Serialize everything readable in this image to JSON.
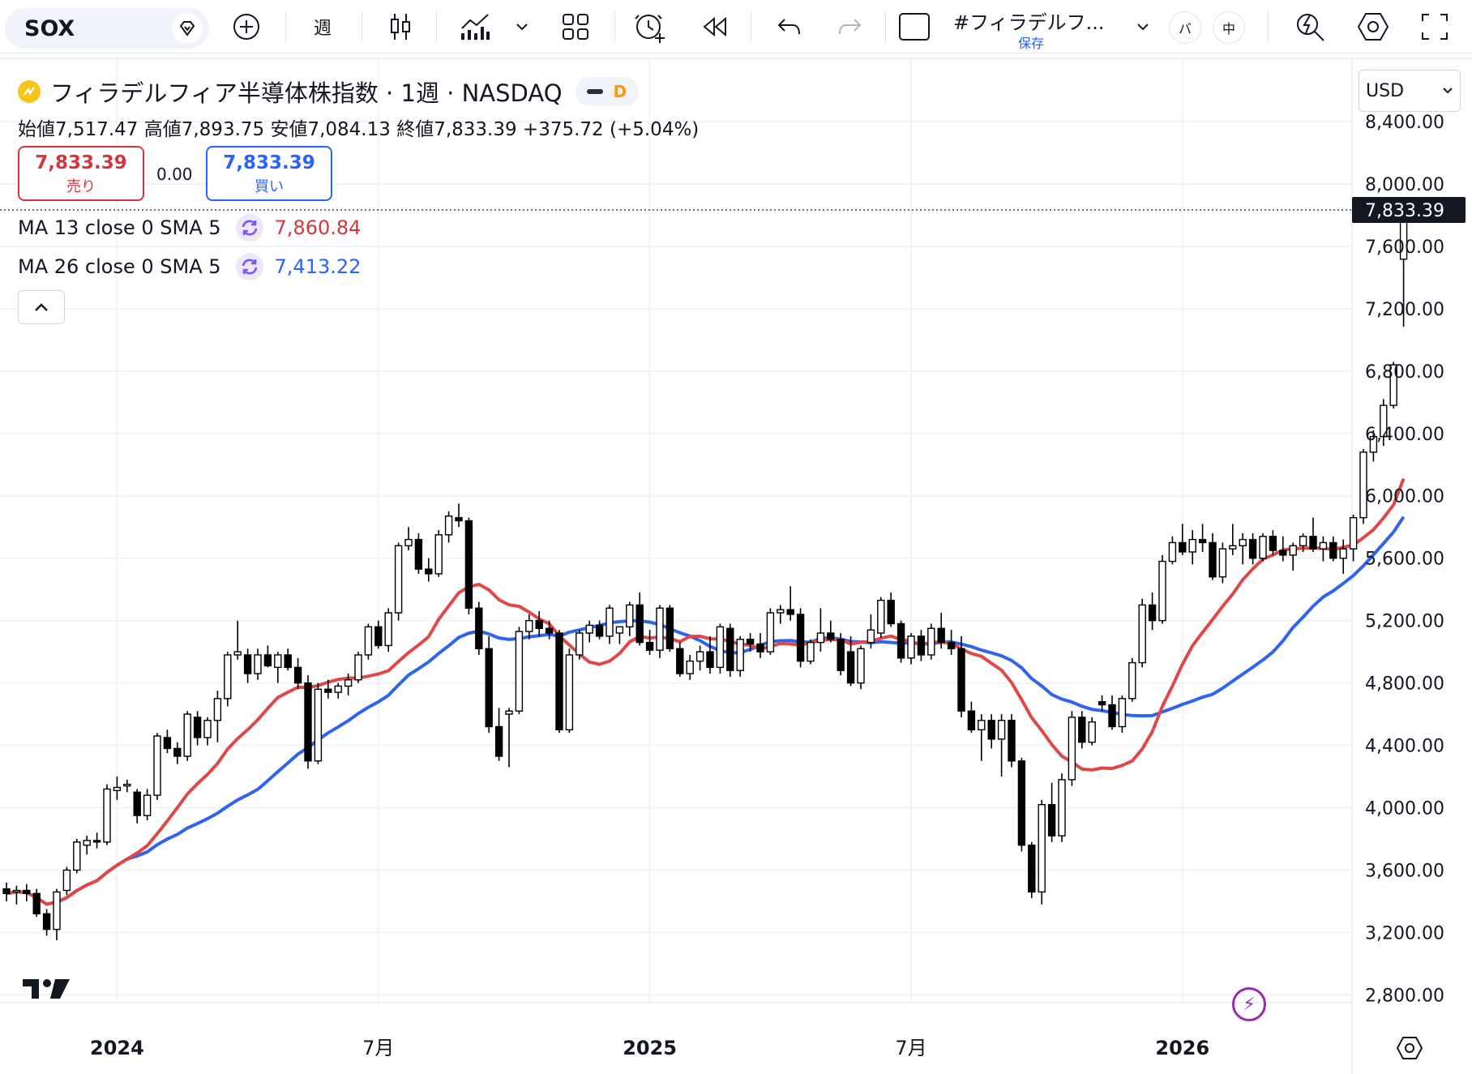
{
  "toolbar": {
    "symbol": "SOX",
    "interval": "週",
    "layout_name": "#フィラデルフ...",
    "layout_saved": "保存",
    "btn_ba": "バ",
    "btn_chu": "中"
  },
  "legend": {
    "title": "フィラデルフィア半導体株指数 · 1週 · NASDAQ",
    "badge": "D",
    "ohlc": "始値7,517.47 高値7,893.75 安値7,084.13 終値7,833.39 +375.72 (+5.04%)",
    "sell_price": "7,833.39",
    "sell_label": "売り",
    "spread": "0.00",
    "buy_price": "7,833.39",
    "buy_label": "買い",
    "ma1_label": "MA 13 close 0 SMA 5",
    "ma1_value": "7,860.84",
    "ma2_label": "MA 26 close 0 SMA 5",
    "ma2_value": "7,413.22"
  },
  "currency": "USD",
  "colors": {
    "up": "#ffffff",
    "down": "#000000",
    "ma13": "#e04848",
    "ma26": "#2f63f0",
    "grid": "#f0f3fa",
    "sell": "#d1373f",
    "buy": "#2962ff"
  },
  "chart_data": {
    "type": "candlestick",
    "y_ticks": [
      "8,400.00",
      "8,000.00",
      "7,600.00",
      "7,200.00",
      "6,800.00",
      "6,400.00",
      "6,000.00",
      "5,600.00",
      "5,200.00",
      "4,800.00",
      "4,400.00",
      "4,000.00",
      "3,600.00",
      "3,200.00",
      "2,800.00"
    ],
    "y_tick_values": [
      8400,
      8000,
      7600,
      7200,
      6800,
      6400,
      6000,
      5600,
      5200,
      4800,
      4400,
      4000,
      3600,
      3200,
      2800
    ],
    "ylim": [
      2750,
      8800
    ],
    "x_labels": [
      "2024",
      "7月",
      "2025",
      "7月",
      "2026"
    ],
    "x_label_bold": [
      true,
      false,
      true,
      false,
      true
    ],
    "x_label_week": [
      11,
      37,
      64,
      90,
      117
    ],
    "last_price": "7,833.39",
    "last_price_value": 7833.39,
    "num_weeks": 140,
    "candles": [
      {
        "w": 0,
        "o": 3480,
        "h": 3520,
        "l": 3400,
        "c": 3450
      },
      {
        "w": 1,
        "o": 3460,
        "h": 3500,
        "l": 3380,
        "c": 3470
      },
      {
        "w": 2,
        "o": 3470,
        "h": 3510,
        "l": 3400,
        "c": 3450
      },
      {
        "w": 3,
        "o": 3450,
        "h": 3480,
        "l": 3300,
        "c": 3320
      },
      {
        "w": 4,
        "o": 3320,
        "h": 3350,
        "l": 3180,
        "c": 3220
      },
      {
        "w": 5,
        "o": 3220,
        "h": 3480,
        "l": 3150,
        "c": 3460
      },
      {
        "w": 6,
        "o": 3470,
        "h": 3620,
        "l": 3440,
        "c": 3600
      },
      {
        "w": 7,
        "o": 3600,
        "h": 3800,
        "l": 3580,
        "c": 3780
      },
      {
        "w": 8,
        "o": 3760,
        "h": 3820,
        "l": 3700,
        "c": 3790
      },
      {
        "w": 9,
        "o": 3790,
        "h": 3840,
        "l": 3740,
        "c": 3780
      },
      {
        "w": 10,
        "o": 3780,
        "h": 4150,
        "l": 3760,
        "c": 4120
      },
      {
        "w": 11,
        "o": 4110,
        "h": 4200,
        "l": 4050,
        "c": 4130
      },
      {
        "w": 12,
        "o": 4140,
        "h": 4180,
        "l": 4100,
        "c": 4150
      },
      {
        "w": 13,
        "o": 4100,
        "h": 4120,
        "l": 3900,
        "c": 3950
      },
      {
        "w": 14,
        "o": 3950,
        "h": 4120,
        "l": 3920,
        "c": 4080
      },
      {
        "w": 15,
        "o": 4080,
        "h": 4480,
        "l": 4050,
        "c": 4460
      },
      {
        "w": 16,
        "o": 4450,
        "h": 4500,
        "l": 4350,
        "c": 4380
      },
      {
        "w": 17,
        "o": 4380,
        "h": 4420,
        "l": 4280,
        "c": 4330
      },
      {
        "w": 18,
        "o": 4330,
        "h": 4620,
        "l": 4300,
        "c": 4600
      },
      {
        "w": 19,
        "o": 4580,
        "h": 4620,
        "l": 4400,
        "c": 4450
      },
      {
        "w": 20,
        "o": 4450,
        "h": 4580,
        "l": 4400,
        "c": 4560
      },
      {
        "w": 21,
        "o": 4560,
        "h": 4750,
        "l": 4420,
        "c": 4700
      },
      {
        "w": 22,
        "o": 4700,
        "h": 5000,
        "l": 4650,
        "c": 4980
      },
      {
        "w": 23,
        "o": 4980,
        "h": 5200,
        "l": 4950,
        "c": 5000
      },
      {
        "w": 24,
        "o": 4980,
        "h": 5020,
        "l": 4800,
        "c": 4860
      },
      {
        "w": 25,
        "o": 4860,
        "h": 5020,
        "l": 4820,
        "c": 4980
      },
      {
        "w": 26,
        "o": 4980,
        "h": 5040,
        "l": 4900,
        "c": 4910
      },
      {
        "w": 27,
        "o": 4900,
        "h": 5000,
        "l": 4800,
        "c": 4980
      },
      {
        "w": 28,
        "o": 4980,
        "h": 5020,
        "l": 4880,
        "c": 4900
      },
      {
        "w": 29,
        "o": 4900,
        "h": 4960,
        "l": 4760,
        "c": 4800
      },
      {
        "w": 30,
        "o": 4800,
        "h": 4850,
        "l": 4250,
        "c": 4300
      },
      {
        "w": 31,
        "o": 4300,
        "h": 4800,
        "l": 4280,
        "c": 4760
      },
      {
        "w": 32,
        "o": 4760,
        "h": 4820,
        "l": 4700,
        "c": 4740
      },
      {
        "w": 33,
        "o": 4740,
        "h": 4800,
        "l": 4700,
        "c": 4780
      },
      {
        "w": 34,
        "o": 4780,
        "h": 4860,
        "l": 4720,
        "c": 4820
      },
      {
        "w": 35,
        "o": 4820,
        "h": 5000,
        "l": 4800,
        "c": 4980
      },
      {
        "w": 36,
        "o": 4980,
        "h": 5180,
        "l": 4950,
        "c": 5160
      },
      {
        "w": 37,
        "o": 5160,
        "h": 5200,
        "l": 5020,
        "c": 5040
      },
      {
        "w": 38,
        "o": 5040,
        "h": 5280,
        "l": 5000,
        "c": 5250
      },
      {
        "w": 39,
        "o": 5250,
        "h": 5700,
        "l": 5200,
        "c": 5680
      },
      {
        "w": 40,
        "o": 5680,
        "h": 5800,
        "l": 5650,
        "c": 5720
      },
      {
        "w": 41,
        "o": 5720,
        "h": 5760,
        "l": 5500,
        "c": 5530
      },
      {
        "w": 42,
        "o": 5530,
        "h": 5600,
        "l": 5450,
        "c": 5500
      },
      {
        "w": 43,
        "o": 5500,
        "h": 5780,
        "l": 5480,
        "c": 5750
      },
      {
        "w": 44,
        "o": 5750,
        "h": 5900,
        "l": 5700,
        "c": 5870
      },
      {
        "w": 45,
        "o": 5860,
        "h": 5950,
        "l": 5800,
        "c": 5840
      },
      {
        "w": 46,
        "o": 5840,
        "h": 5860,
        "l": 5240,
        "c": 5280
      },
      {
        "w": 47,
        "o": 5280,
        "h": 5320,
        "l": 4980,
        "c": 5020
      },
      {
        "w": 48,
        "o": 5020,
        "h": 5100,
        "l": 4480,
        "c": 4520
      },
      {
        "w": 49,
        "o": 4520,
        "h": 4640,
        "l": 4300,
        "c": 4330
      },
      {
        "w": 50,
        "o": 4600,
        "h": 4640,
        "l": 4260,
        "c": 4620
      },
      {
        "w": 51,
        "o": 4620,
        "h": 5160,
        "l": 4600,
        "c": 5130
      },
      {
        "w": 52,
        "o": 5130,
        "h": 5240,
        "l": 5080,
        "c": 5200
      },
      {
        "w": 53,
        "o": 5200,
        "h": 5260,
        "l": 5100,
        "c": 5150
      },
      {
        "w": 54,
        "o": 5150,
        "h": 5200,
        "l": 5080,
        "c": 5120
      },
      {
        "w": 55,
        "o": 5120,
        "h": 5140,
        "l": 4480,
        "c": 4500
      },
      {
        "w": 56,
        "o": 4500,
        "h": 5020,
        "l": 4480,
        "c": 4980
      },
      {
        "w": 57,
        "o": 4980,
        "h": 5140,
        "l": 4950,
        "c": 5120
      },
      {
        "w": 58,
        "o": 5120,
        "h": 5200,
        "l": 5060,
        "c": 5170
      },
      {
        "w": 59,
        "o": 5170,
        "h": 5200,
        "l": 5080,
        "c": 5100
      },
      {
        "w": 60,
        "o": 5100,
        "h": 5300,
        "l": 5050,
        "c": 5280
      },
      {
        "w": 61,
        "o": 5120,
        "h": 5160,
        "l": 5050,
        "c": 5160
      },
      {
        "w": 62,
        "o": 5160,
        "h": 5320,
        "l": 5100,
        "c": 5300
      },
      {
        "w": 63,
        "o": 5300,
        "h": 5380,
        "l": 5040,
        "c": 5060
      },
      {
        "w": 64,
        "o": 5060,
        "h": 5140,
        "l": 4980,
        "c": 5010
      },
      {
        "w": 65,
        "o": 5010,
        "h": 5300,
        "l": 4960,
        "c": 5280
      },
      {
        "w": 66,
        "o": 5280,
        "h": 5300,
        "l": 5000,
        "c": 5020
      },
      {
        "w": 67,
        "o": 5020,
        "h": 5060,
        "l": 4840,
        "c": 4860
      },
      {
        "w": 68,
        "o": 4860,
        "h": 4980,
        "l": 4820,
        "c": 4940
      },
      {
        "w": 69,
        "o": 4940,
        "h": 5040,
        "l": 4880,
        "c": 5000
      },
      {
        "w": 70,
        "o": 5000,
        "h": 5100,
        "l": 4860,
        "c": 4900
      },
      {
        "w": 71,
        "o": 4900,
        "h": 5180,
        "l": 4860,
        "c": 5160
      },
      {
        "w": 72,
        "o": 5150,
        "h": 5180,
        "l": 4840,
        "c": 4880
      },
      {
        "w": 73,
        "o": 4880,
        "h": 5100,
        "l": 4840,
        "c": 5080
      },
      {
        "w": 74,
        "o": 5080,
        "h": 5120,
        "l": 5000,
        "c": 5050
      },
      {
        "w": 75,
        "o": 5050,
        "h": 5120,
        "l": 4960,
        "c": 5000
      },
      {
        "w": 76,
        "o": 5000,
        "h": 5280,
        "l": 4980,
        "c": 5250
      },
      {
        "w": 77,
        "o": 5250,
        "h": 5300,
        "l": 5180,
        "c": 5270
      },
      {
        "w": 78,
        "o": 5270,
        "h": 5420,
        "l": 5200,
        "c": 5240
      },
      {
        "w": 79,
        "o": 5240,
        "h": 5280,
        "l": 4900,
        "c": 4940
      },
      {
        "w": 80,
        "o": 4940,
        "h": 5080,
        "l": 4920,
        "c": 5060
      },
      {
        "w": 81,
        "o": 5060,
        "h": 5280,
        "l": 5000,
        "c": 5120
      },
      {
        "w": 82,
        "o": 5120,
        "h": 5200,
        "l": 5060,
        "c": 5080
      },
      {
        "w": 83,
        "o": 5080,
        "h": 5120,
        "l": 4850,
        "c": 4880
      },
      {
        "w": 84,
        "o": 5000,
        "h": 5100,
        "l": 4780,
        "c": 4800
      },
      {
        "w": 85,
        "o": 4800,
        "h": 5040,
        "l": 4760,
        "c": 5020
      },
      {
        "w": 86,
        "o": 5060,
        "h": 5240,
        "l": 5020,
        "c": 5140
      },
      {
        "w": 87,
        "o": 5120,
        "h": 5350,
        "l": 5090,
        "c": 5330
      },
      {
        "w": 88,
        "o": 5330,
        "h": 5380,
        "l": 5160,
        "c": 5180
      },
      {
        "w": 89,
        "o": 5180,
        "h": 5200,
        "l": 4930,
        "c": 4960
      },
      {
        "w": 90,
        "o": 4960,
        "h": 5120,
        "l": 4920,
        "c": 5100
      },
      {
        "w": 91,
        "o": 5100,
        "h": 5140,
        "l": 4940,
        "c": 4980
      },
      {
        "w": 92,
        "o": 4980,
        "h": 5180,
        "l": 4950,
        "c": 5150
      },
      {
        "w": 93,
        "o": 5150,
        "h": 5250,
        "l": 5020,
        "c": 5060
      },
      {
        "w": 94,
        "o": 5060,
        "h": 5140,
        "l": 4980,
        "c": 5020
      },
      {
        "w": 95,
        "o": 5020,
        "h": 5100,
        "l": 4580,
        "c": 4620
      },
      {
        "w": 96,
        "o": 4620,
        "h": 4680,
        "l": 4480,
        "c": 4500
      },
      {
        "w": 97,
        "o": 4500,
        "h": 4600,
        "l": 4300,
        "c": 4560
      },
      {
        "w": 98,
        "o": 4560,
        "h": 4600,
        "l": 4380,
        "c": 4440
      },
      {
        "w": 99,
        "o": 4440,
        "h": 4600,
        "l": 4200,
        "c": 4560
      },
      {
        "w": 100,
        "o": 4560,
        "h": 4600,
        "l": 4260,
        "c": 4300
      },
      {
        "w": 101,
        "o": 4300,
        "h": 4320,
        "l": 3720,
        "c": 3760
      },
      {
        "w": 102,
        "o": 3760,
        "h": 3780,
        "l": 3420,
        "c": 3460
      },
      {
        "w": 103,
        "o": 3460,
        "h": 4050,
        "l": 3380,
        "c": 4020
      },
      {
        "w": 104,
        "o": 4020,
        "h": 4160,
        "l": 3780,
        "c": 3820
      },
      {
        "w": 105,
        "o": 3820,
        "h": 4220,
        "l": 3780,
        "c": 4180
      },
      {
        "w": 106,
        "o": 4180,
        "h": 4620,
        "l": 4140,
        "c": 4580
      },
      {
        "w": 107,
        "o": 4580,
        "h": 4620,
        "l": 4380,
        "c": 4420
      },
      {
        "w": 108,
        "o": 4420,
        "h": 4580,
        "l": 4400,
        "c": 4550
      },
      {
        "w": 109,
        "o": 4680,
        "h": 4720,
        "l": 4620,
        "c": 4660
      },
      {
        "w": 110,
        "o": 4660,
        "h": 4720,
        "l": 4500,
        "c": 4520
      },
      {
        "w": 111,
        "o": 4520,
        "h": 4720,
        "l": 4480,
        "c": 4700
      },
      {
        "w": 112,
        "o": 4700,
        "h": 4960,
        "l": 4680,
        "c": 4930
      },
      {
        "w": 113,
        "o": 4930,
        "h": 5340,
        "l": 4900,
        "c": 5300
      },
      {
        "w": 114,
        "o": 5300,
        "h": 5380,
        "l": 5140,
        "c": 5200
      },
      {
        "w": 115,
        "o": 5200,
        "h": 5620,
        "l": 5180,
        "c": 5580
      },
      {
        "w": 116,
        "o": 5580,
        "h": 5740,
        "l": 5560,
        "c": 5700
      },
      {
        "w": 117,
        "o": 5700,
        "h": 5820,
        "l": 5620,
        "c": 5640
      },
      {
        "w": 118,
        "o": 5640,
        "h": 5780,
        "l": 5560,
        "c": 5720
      },
      {
        "w": 119,
        "o": 5720,
        "h": 5820,
        "l": 5640,
        "c": 5700
      },
      {
        "w": 120,
        "o": 5700,
        "h": 5760,
        "l": 5460,
        "c": 5480
      },
      {
        "w": 121,
        "o": 5480,
        "h": 5700,
        "l": 5440,
        "c": 5660
      },
      {
        "w": 122,
        "o": 5660,
        "h": 5820,
        "l": 5620,
        "c": 5680
      },
      {
        "w": 123,
        "o": 5680,
        "h": 5760,
        "l": 5560,
        "c": 5720
      },
      {
        "w": 124,
        "o": 5720,
        "h": 5760,
        "l": 5560,
        "c": 5600
      },
      {
        "w": 125,
        "o": 5600,
        "h": 5760,
        "l": 5580,
        "c": 5740
      },
      {
        "w": 126,
        "o": 5740,
        "h": 5780,
        "l": 5620,
        "c": 5650
      },
      {
        "w": 127,
        "o": 5650,
        "h": 5740,
        "l": 5580,
        "c": 5620
      },
      {
        "w": 128,
        "o": 5620,
        "h": 5700,
        "l": 5520,
        "c": 5680
      },
      {
        "w": 129,
        "o": 5680,
        "h": 5760,
        "l": 5640,
        "c": 5740
      },
      {
        "w": 130,
        "o": 5740,
        "h": 5860,
        "l": 5640,
        "c": 5660
      },
      {
        "w": 131,
        "o": 5660,
        "h": 5740,
        "l": 5580,
        "c": 5700
      },
      {
        "w": 132,
        "o": 5700,
        "h": 5740,
        "l": 5580,
        "c": 5600
      },
      {
        "w": 133,
        "o": 5600,
        "h": 5720,
        "l": 5500,
        "c": 5660
      },
      {
        "w": 134,
        "o": 5660,
        "h": 5880,
        "l": 5580,
        "c": 5860
      },
      {
        "w": 135,
        "o": 5860,
        "h": 6300,
        "l": 5820,
        "c": 6280
      },
      {
        "w": 136,
        "o": 6280,
        "h": 6420,
        "l": 6220,
        "c": 6380
      },
      {
        "w": 137,
        "o": 6380,
        "h": 6620,
        "l": 6320,
        "c": 6580
      },
      {
        "w": 138,
        "o": 6580,
        "h": 6860,
        "l": 6560,
        "c": 6840
      },
      {
        "w": 139,
        "o": 7517.47,
        "h": 7893.75,
        "l": 7084.13,
        "c": 7833.39
      }
    ]
  }
}
